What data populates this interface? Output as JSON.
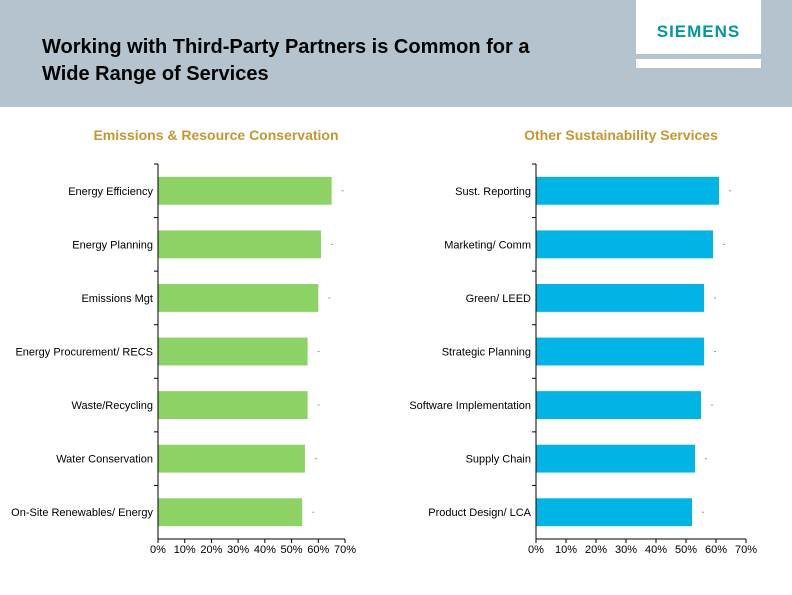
{
  "slide": {
    "title_line1": "Working with Third-Party Partners is Common for a",
    "title_line2": "Wide Range of Services",
    "logo": "SIEMENS"
  },
  "chart_data": [
    {
      "type": "bar",
      "orientation": "horizontal",
      "title": "Emissions & Resource Conservation",
      "categories": [
        "Energy Efficiency",
        "Energy Planning",
        "Emissions Mgt",
        "Energy Procurement/ RECS",
        "Waste/Recycling",
        "Water Conservation",
        "On-Site Renewables/ Energy"
      ],
      "values": [
        0.65,
        0.61,
        0.6,
        0.56,
        0.56,
        0.55,
        0.54
      ],
      "xlim": [
        0,
        0.7
      ],
      "xticks": [
        "0%",
        "10%",
        "20%",
        "30%",
        "40%",
        "50%",
        "60%",
        "70%"
      ],
      "color": "#8cd264",
      "grid": false
    },
    {
      "type": "bar",
      "orientation": "horizontal",
      "title": "Other Sustainability Services",
      "categories": [
        "Sust. Reporting",
        "Marketing/ Comm",
        "Green/ LEED",
        "Strategic Planning",
        "Software Implementation",
        "Supply Chain",
        "Product Design/ LCA"
      ],
      "values": [
        0.61,
        0.59,
        0.56,
        0.56,
        0.55,
        0.53,
        0.52
      ],
      "xlim": [
        0,
        0.7
      ],
      "xticks": [
        "0%",
        "10%",
        "20%",
        "30%",
        "40%",
        "50%",
        "60%",
        "70%"
      ],
      "color": "#00b4e6",
      "grid": false
    }
  ]
}
